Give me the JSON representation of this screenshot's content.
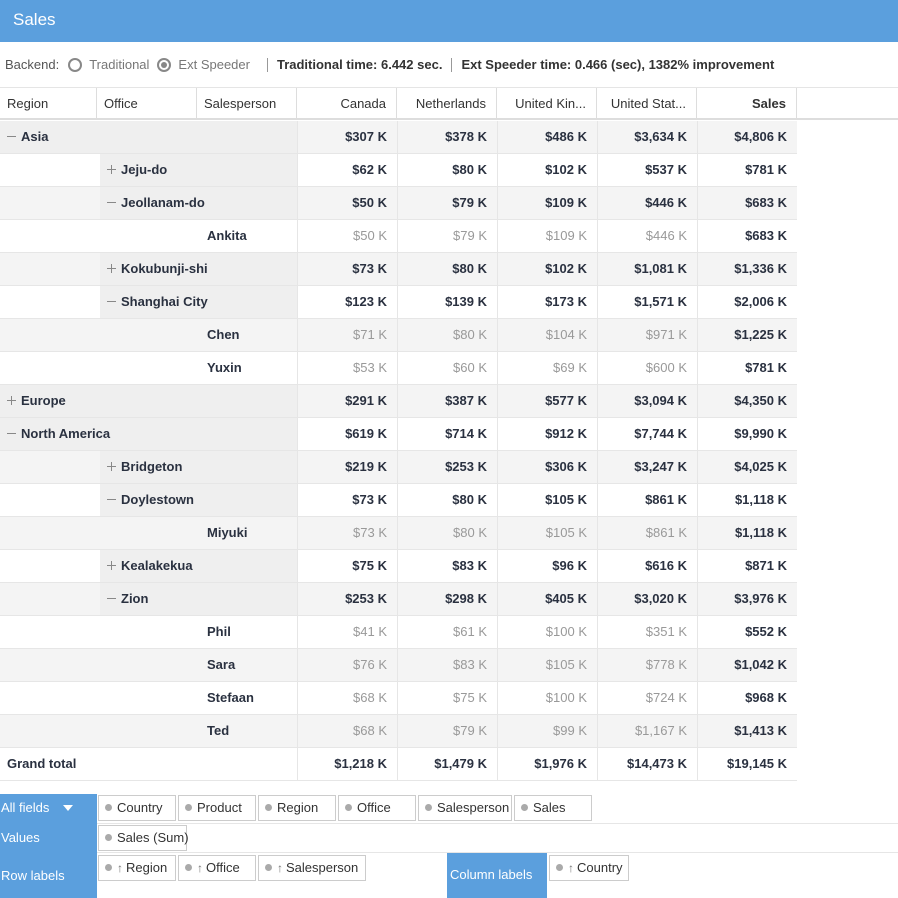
{
  "title": "Sales",
  "backend": {
    "label": "Backend:",
    "options": [
      "Traditional",
      "Ext Speeder"
    ],
    "selected": "Ext Speeder",
    "traditional_time": "Traditional time: 6.442 sec.",
    "speeder_time": "Ext Speeder time: 0.466 (sec), 1382% improvement"
  },
  "headers": [
    "Region",
    "Office",
    "Salesperson",
    "Canada",
    "Netherlands",
    "United Kin...",
    "United Stat...",
    "Sales"
  ],
  "rows": [
    {
      "level": 0,
      "toggle": "minus",
      "label": "Asia",
      "vals": [
        "$307 K",
        "$378 K",
        "$486 K",
        "$3,634 K",
        "$4,806 K"
      ],
      "leaf": false
    },
    {
      "level": 1,
      "toggle": "plus",
      "label": "Jeju-do",
      "vals": [
        "$62 K",
        "$80 K",
        "$102 K",
        "$537 K",
        "$781 K"
      ],
      "leaf": false
    },
    {
      "level": 1,
      "toggle": "minus",
      "label": "Jeollanam-do",
      "vals": [
        "$50 K",
        "$79 K",
        "$109 K",
        "$446 K",
        "$683 K"
      ],
      "leaf": false
    },
    {
      "level": 2,
      "toggle": "",
      "label": "Ankita",
      "vals": [
        "$50 K",
        "$79 K",
        "$109 K",
        "$446 K",
        "$683 K"
      ],
      "leaf": true
    },
    {
      "level": 1,
      "toggle": "plus",
      "label": "Kokubunji-shi",
      "vals": [
        "$73 K",
        "$80 K",
        "$102 K",
        "$1,081 K",
        "$1,336 K"
      ],
      "leaf": false
    },
    {
      "level": 1,
      "toggle": "minus",
      "label": "Shanghai City",
      "vals": [
        "$123 K",
        "$139 K",
        "$173 K",
        "$1,571 K",
        "$2,006 K"
      ],
      "leaf": false
    },
    {
      "level": 2,
      "toggle": "",
      "label": "Chen",
      "vals": [
        "$71 K",
        "$80 K",
        "$104 K",
        "$971 K",
        "$1,225 K"
      ],
      "leaf": true
    },
    {
      "level": 2,
      "toggle": "",
      "label": "Yuxin",
      "vals": [
        "$53 K",
        "$60 K",
        "$69 K",
        "$600 K",
        "$781 K"
      ],
      "leaf": true
    },
    {
      "level": 0,
      "toggle": "plus",
      "label": "Europe",
      "vals": [
        "$291 K",
        "$387 K",
        "$577 K",
        "$3,094 K",
        "$4,350 K"
      ],
      "leaf": false
    },
    {
      "level": 0,
      "toggle": "minus",
      "label": "North America",
      "vals": [
        "$619 K",
        "$714 K",
        "$912 K",
        "$7,744 K",
        "$9,990 K"
      ],
      "leaf": false
    },
    {
      "level": 1,
      "toggle": "plus",
      "label": "Bridgeton",
      "vals": [
        "$219 K",
        "$253 K",
        "$306 K",
        "$3,247 K",
        "$4,025 K"
      ],
      "leaf": false
    },
    {
      "level": 1,
      "toggle": "minus",
      "label": "Doylestown",
      "vals": [
        "$73 K",
        "$80 K",
        "$105 K",
        "$861 K",
        "$1,118 K"
      ],
      "leaf": false
    },
    {
      "level": 2,
      "toggle": "",
      "label": "Miyuki",
      "vals": [
        "$73 K",
        "$80 K",
        "$105 K",
        "$861 K",
        "$1,118 K"
      ],
      "leaf": true
    },
    {
      "level": 1,
      "toggle": "plus",
      "label": "Kealakekua",
      "vals": [
        "$75 K",
        "$83 K",
        "$96 K",
        "$616 K",
        "$871 K"
      ],
      "leaf": false
    },
    {
      "level": 1,
      "toggle": "minus",
      "label": "Zion",
      "vals": [
        "$253 K",
        "$298 K",
        "$405 K",
        "$3,020 K",
        "$3,976 K"
      ],
      "leaf": false
    },
    {
      "level": 2,
      "toggle": "",
      "label": "Phil",
      "vals": [
        "$41 K",
        "$61 K",
        "$100 K",
        "$351 K",
        "$552 K"
      ],
      "leaf": true
    },
    {
      "level": 2,
      "toggle": "",
      "label": "Sara",
      "vals": [
        "$76 K",
        "$83 K",
        "$105 K",
        "$778 K",
        "$1,042 K"
      ],
      "leaf": true
    },
    {
      "level": 2,
      "toggle": "",
      "label": "Stefaan",
      "vals": [
        "$68 K",
        "$75 K",
        "$100 K",
        "$724 K",
        "$968 K"
      ],
      "leaf": true
    },
    {
      "level": 2,
      "toggle": "",
      "label": "Ted",
      "vals": [
        "$68 K",
        "$79 K",
        "$99 K",
        "$1,167 K",
        "$1,413 K"
      ],
      "leaf": true
    }
  ],
  "grand_total": {
    "label": "Grand total",
    "vals": [
      "$1,218 K",
      "$1,479 K",
      "$1,976 K",
      "$14,473 K",
      "$19,145 K"
    ]
  },
  "fields": {
    "all_fields_label": "All fields",
    "all_fields": [
      "Country",
      "Product",
      "Region",
      "Office",
      "Salesperson",
      "Sales"
    ],
    "values_label": "Values",
    "values": [
      "Sales (Sum)"
    ],
    "row_labels_label": "Row labels",
    "row_labels": [
      "Region",
      "Office",
      "Salesperson"
    ],
    "column_labels_label": "Column labels",
    "column_labels": [
      "Country"
    ]
  }
}
